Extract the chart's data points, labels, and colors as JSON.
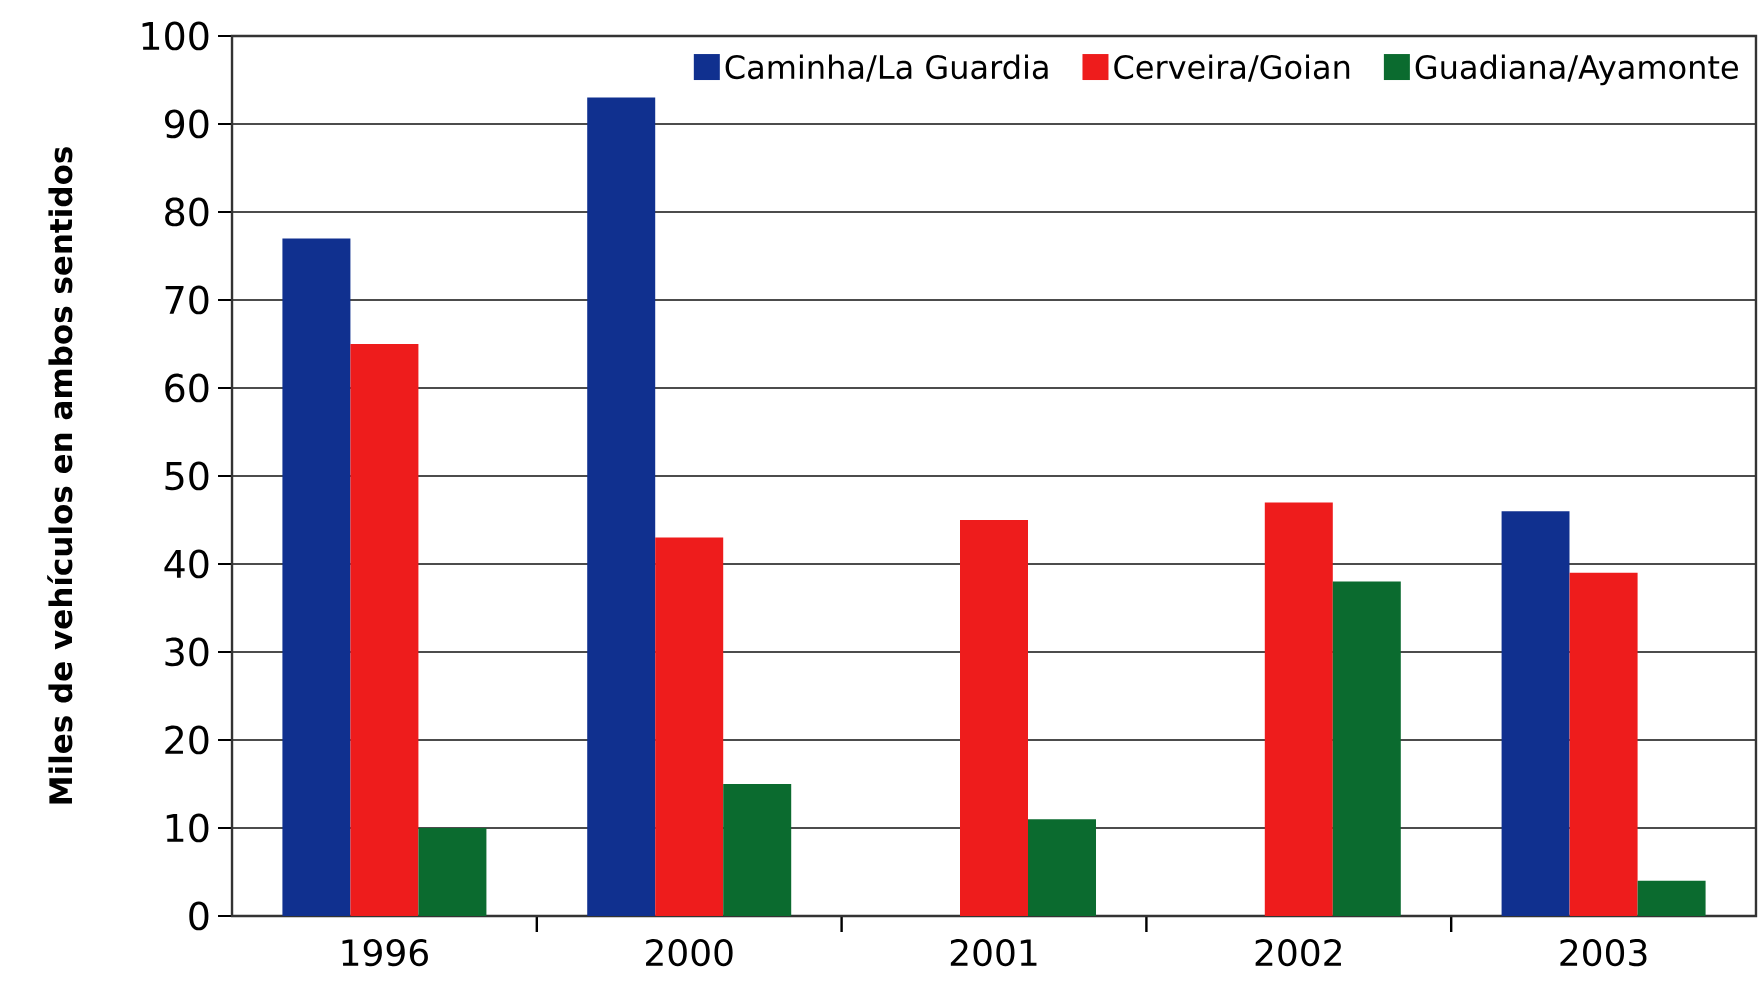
{
  "chart_data": {
    "type": "bar",
    "ylabel": "Miles de vehículos en ambos sentidos",
    "categories": [
      "1996",
      "2000",
      "2001",
      "2002",
      "2003"
    ],
    "series": [
      {
        "name": "Caminha/La Guardia",
        "color": "#10308f",
        "values": [
          77,
          93,
          null,
          null,
          46
        ]
      },
      {
        "name": "Cerveira/Goian",
        "color": "#ee1c1c",
        "values": [
          65,
          43,
          45,
          47,
          39
        ]
      },
      {
        "name": "Guadiana/Ayamonte",
        "color": "#0b6b2f",
        "values": [
          10,
          15,
          11,
          38,
          4
        ]
      }
    ],
    "ylim": [
      0,
      100
    ],
    "yticks": [
      0,
      10,
      20,
      30,
      40,
      50,
      60,
      70,
      80,
      90,
      100
    ],
    "grid": "y",
    "legend": "top right"
  }
}
